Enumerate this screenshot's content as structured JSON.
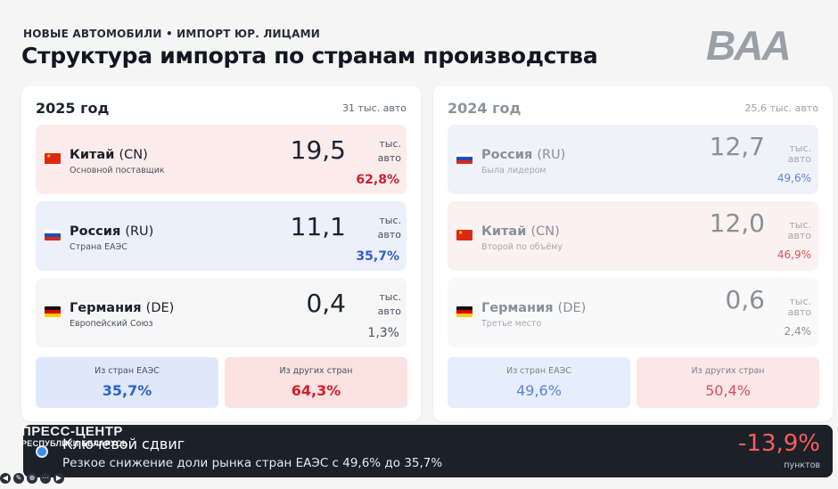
{
  "header": {
    "overline": "НОВЫЕ АВТОМОБИЛИ • ИМПОРТ ЮР. ЛИЦАМИ",
    "title": "Структура импорта по странам производства",
    "logo_text": "BAA"
  },
  "panels": {
    "y2025": {
      "year": "2025 год",
      "total": "31 тыс. авто",
      "countries": [
        {
          "name": "Китай",
          "code": "(CN)",
          "sub": "Основной поставщик",
          "value": "19,5",
          "unit": "тыс. авто",
          "share": "62,8%",
          "flag": "cn-flag-icon"
        },
        {
          "name": "Россия",
          "code": "(RU)",
          "sub": "Страна ЕАЭС",
          "value": "11,1",
          "unit": "тыс. авто",
          "share": "35,7%",
          "flag": "ru-flag-icon"
        },
        {
          "name": "Германия",
          "code": "(DE)",
          "sub": "Европейский Союз",
          "value": "0,4",
          "unit": "тыс. авто",
          "share": "1,3%",
          "flag": "de-flag-icon"
        }
      ],
      "summary": {
        "eaes_label": "Из стран ЕАЭС",
        "eaes_value": "35,7%",
        "other_label": "Из других стран",
        "other_value": "64,3%"
      }
    },
    "y2024": {
      "year": "2024 год",
      "total": "25,6 тыс. авто",
      "countries": [
        {
          "name": "Россия",
          "code": "(RU)",
          "sub": "Была лидером",
          "value": "12,7",
          "unit": "тыс. авто",
          "share": "49,6%",
          "flag": "ru-flag-icon"
        },
        {
          "name": "Китай",
          "code": "(CN)",
          "sub": "Второй по объёму",
          "value": "12,0",
          "unit": "тыс. авто",
          "share": "46,9%",
          "flag": "cn-flag-icon"
        },
        {
          "name": "Германия",
          "code": "(DE)",
          "sub": "Третье место",
          "value": "0,6",
          "unit": "тыс. авто",
          "share": "2,4%",
          "flag": "de-flag-icon"
        }
      ],
      "summary": {
        "eaes_label": "Из стран ЕАЭС",
        "eaes_value": "49,6%",
        "other_label": "Из других стран",
        "other_value": "50,4%"
      }
    }
  },
  "key_shift": {
    "title": "Ключевой сдвиг",
    "description": "Резкое снижение доли рынка стран ЕАЭС с 49,6% до 35,7%",
    "value": "-13,9%",
    "unit": "пунктов"
  },
  "watermark": {
    "line1": "ПРЕСС-ЦЕНТР",
    "line2": "РЕСПУБЛИКИ БЕЛАРУСЬ"
  },
  "colors": {
    "red": "#cf1f2e",
    "blue": "#2f5fc9",
    "dark_bar": "#1b2029",
    "negative": "#ff5b5b"
  }
}
